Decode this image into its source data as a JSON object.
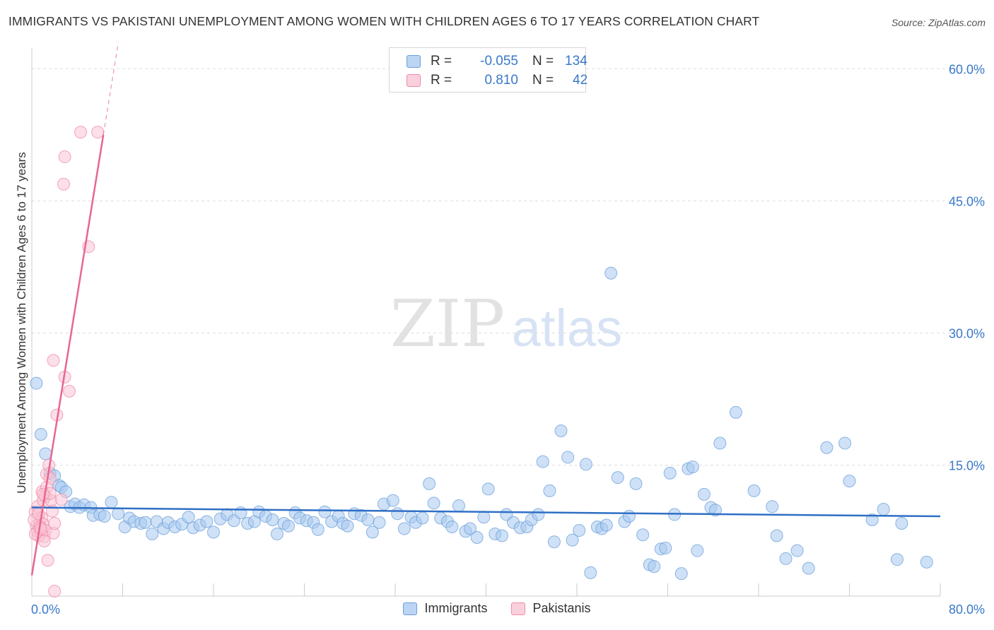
{
  "header": {
    "title": "IMMIGRANTS VS PAKISTANI UNEMPLOYMENT AMONG WOMEN WITH CHILDREN AGES 6 TO 17 YEARS CORRELATION CHART",
    "source": "Source: ZipAtlas.com"
  },
  "watermark": {
    "zip": "ZIP",
    "atlas": "atlas"
  },
  "legend_top": {
    "rows": [
      {
        "r_label": "R =",
        "r_value": "-0.055",
        "n_label": "N =",
        "n_value": "134",
        "color": "#8fb8e8"
      },
      {
        "r_label": "R =",
        "r_value": "0.810",
        "n_label": "N =",
        "n_value": "42",
        "color": "#f4a6c0"
      }
    ]
  },
  "legend_bottom": {
    "items": [
      {
        "label": "Immigrants",
        "color": "#8fb8e8"
      },
      {
        "label": "Pakistanis",
        "color": "#f4a6c0"
      }
    ]
  },
  "colors": {
    "immigrants_fill": "#a8c8ee",
    "immigrants_stroke": "#6a9fdc",
    "immigrants_line": "#2f6fc6",
    "pakistanis_fill": "#f9c5d5",
    "pakistanis_stroke": "#ee89a8",
    "pakistanis_line": "#e9668f",
    "tick_label": "#3a78c9",
    "grid": "#dddddd"
  },
  "chart_data": {
    "type": "scatter",
    "title": "IMMIGRANTS VS PAKISTANI UNEMPLOYMENT AMONG WOMEN WITH CHILDREN AGES 6 TO 17 YEARS CORRELATION CHART",
    "xlabel": "",
    "ylabel": "Unemployment Among Women with Children Ages 6 to 17 years",
    "xlim": [
      0,
      80
    ],
    "ylim": [
      0,
      63
    ],
    "x_tick_labels": [
      {
        "value": 0,
        "label": "0.0%"
      },
      {
        "value": 80,
        "label": "80.0%"
      }
    ],
    "y_tick_labels": [
      {
        "value": 15,
        "label": "15.0%"
      },
      {
        "value": 30,
        "label": "30.0%"
      },
      {
        "value": 45,
        "label": "45.0%"
      },
      {
        "value": 60,
        "label": "60.0%"
      }
    ],
    "grid": true,
    "legend_position": "bottom",
    "series": [
      {
        "name": "Immigrants",
        "trend": {
          "x": [
            0,
            80
          ],
          "y": [
            10.2,
            9.2
          ]
        },
        "points": [
          [
            0.4,
            24.3
          ],
          [
            0.8,
            18.5
          ],
          [
            1.2,
            16.3
          ],
          [
            1.6,
            14.1
          ],
          [
            2.0,
            13.8
          ],
          [
            2.4,
            12.7
          ],
          [
            2.6,
            12.5
          ],
          [
            3.0,
            12.0
          ],
          [
            3.4,
            10.3
          ],
          [
            3.8,
            10.6
          ],
          [
            4.2,
            10.2
          ],
          [
            4.6,
            10.5
          ],
          [
            5.2,
            10.2
          ],
          [
            5.4,
            9.3
          ],
          [
            6.0,
            9.4
          ],
          [
            6.4,
            9.2
          ],
          [
            7.0,
            10.8
          ],
          [
            7.6,
            9.5
          ],
          [
            8.2,
            8.0
          ],
          [
            8.6,
            9.0
          ],
          [
            9.0,
            8.6
          ],
          [
            9.6,
            8.4
          ],
          [
            10.0,
            8.5
          ],
          [
            10.6,
            7.2
          ],
          [
            11.0,
            8.6
          ],
          [
            11.6,
            7.8
          ],
          [
            12.0,
            8.5
          ],
          [
            12.6,
            8.0
          ],
          [
            13.2,
            8.3
          ],
          [
            13.8,
            9.1
          ],
          [
            14.2,
            7.9
          ],
          [
            14.8,
            8.2
          ],
          [
            15.4,
            8.6
          ],
          [
            16.0,
            7.4
          ],
          [
            16.6,
            8.9
          ],
          [
            17.2,
            9.4
          ],
          [
            17.8,
            8.7
          ],
          [
            18.4,
            9.6
          ],
          [
            19.0,
            8.4
          ],
          [
            19.6,
            8.6
          ],
          [
            20.0,
            9.7
          ],
          [
            20.6,
            9.2
          ],
          [
            21.2,
            8.8
          ],
          [
            21.6,
            7.2
          ],
          [
            22.2,
            8.4
          ],
          [
            22.6,
            8.1
          ],
          [
            23.2,
            9.6
          ],
          [
            23.6,
            9.0
          ],
          [
            24.2,
            8.7
          ],
          [
            24.8,
            8.5
          ],
          [
            25.2,
            7.7
          ],
          [
            25.8,
            9.7
          ],
          [
            26.4,
            8.6
          ],
          [
            27.0,
            9.2
          ],
          [
            27.4,
            8.4
          ],
          [
            27.8,
            8.1
          ],
          [
            28.4,
            9.5
          ],
          [
            29.0,
            9.3
          ],
          [
            29.6,
            8.8
          ],
          [
            30.0,
            7.4
          ],
          [
            30.6,
            8.5
          ],
          [
            31.0,
            10.6
          ],
          [
            31.8,
            11.0
          ],
          [
            32.2,
            9.5
          ],
          [
            32.8,
            7.8
          ],
          [
            33.4,
            9.1
          ],
          [
            33.8,
            8.5
          ],
          [
            34.4,
            9.0
          ],
          [
            35.0,
            12.9
          ],
          [
            35.4,
            10.7
          ],
          [
            36.0,
            9.0
          ],
          [
            36.6,
            8.6
          ],
          [
            37.0,
            8.0
          ],
          [
            37.6,
            10.4
          ],
          [
            38.2,
            7.5
          ],
          [
            38.6,
            7.8
          ],
          [
            39.2,
            6.8
          ],
          [
            39.8,
            9.1
          ],
          [
            40.2,
            12.3
          ],
          [
            40.8,
            7.2
          ],
          [
            41.4,
            7.0
          ],
          [
            41.8,
            9.4
          ],
          [
            42.4,
            8.5
          ],
          [
            43.0,
            7.9
          ],
          [
            43.6,
            8.0
          ],
          [
            44.0,
            8.8
          ],
          [
            44.6,
            9.4
          ],
          [
            45.0,
            15.4
          ],
          [
            45.6,
            12.1
          ],
          [
            46.0,
            6.3
          ],
          [
            46.6,
            18.9
          ],
          [
            47.2,
            15.9
          ],
          [
            47.6,
            6.5
          ],
          [
            48.2,
            7.6
          ],
          [
            48.8,
            15.1
          ],
          [
            49.2,
            2.8
          ],
          [
            49.8,
            8.0
          ],
          [
            50.2,
            7.8
          ],
          [
            50.6,
            8.2
          ],
          [
            51.0,
            36.8
          ],
          [
            51.6,
            13.6
          ],
          [
            52.2,
            8.6
          ],
          [
            52.6,
            9.2
          ],
          [
            53.2,
            12.9
          ],
          [
            53.8,
            7.1
          ],
          [
            54.4,
            3.7
          ],
          [
            54.8,
            3.5
          ],
          [
            55.4,
            5.5
          ],
          [
            55.8,
            5.6
          ],
          [
            56.2,
            14.1
          ],
          [
            56.6,
            9.4
          ],
          [
            57.2,
            2.7
          ],
          [
            57.8,
            14.6
          ],
          [
            58.2,
            14.8
          ],
          [
            58.6,
            5.3
          ],
          [
            59.2,
            11.7
          ],
          [
            59.8,
            10.2
          ],
          [
            60.2,
            9.9
          ],
          [
            60.6,
            17.5
          ],
          [
            62.0,
            21.0
          ],
          [
            63.6,
            12.1
          ],
          [
            65.2,
            10.3
          ],
          [
            65.6,
            7.0
          ],
          [
            66.4,
            4.4
          ],
          [
            67.4,
            5.3
          ],
          [
            68.4,
            3.3
          ],
          [
            70.0,
            17.0
          ],
          [
            71.6,
            17.5
          ],
          [
            72.0,
            13.2
          ],
          [
            74.0,
            8.8
          ],
          [
            75.0,
            10.0
          ],
          [
            76.2,
            4.3
          ],
          [
            76.6,
            8.4
          ],
          [
            78.8,
            4.0
          ]
        ]
      },
      {
        "name": "Pakistanis",
        "trend": {
          "x": [
            0,
            6.3
          ],
          "y": [
            2.5,
            52.5
          ]
        },
        "points": [
          [
            0.3,
            9.7
          ],
          [
            0.4,
            8.1
          ],
          [
            0.5,
            7.5
          ],
          [
            0.6,
            7.0
          ],
          [
            0.7,
            8.6
          ],
          [
            0.8,
            7.4
          ],
          [
            0.9,
            9.0
          ],
          [
            1.0,
            8.3
          ],
          [
            1.1,
            6.9
          ],
          [
            1.2,
            7.6
          ],
          [
            0.2,
            8.8
          ],
          [
            0.3,
            7.2
          ],
          [
            0.5,
            10.3
          ],
          [
            0.6,
            9.5
          ],
          [
            0.7,
            8.0
          ],
          [
            0.9,
            12.0
          ],
          [
            1.0,
            11.0
          ],
          [
            1.2,
            11.5
          ],
          [
            1.3,
            14.0
          ],
          [
            1.4,
            4.2
          ],
          [
            1.5,
            15.0
          ],
          [
            1.6,
            13.5
          ],
          [
            1.7,
            11.0
          ],
          [
            1.8,
            9.8
          ],
          [
            1.9,
            7.3
          ],
          [
            2.0,
            8.4
          ],
          [
            1.9,
            26.9
          ],
          [
            2.2,
            20.7
          ],
          [
            2.6,
            11.1
          ],
          [
            2.9,
            25.0
          ],
          [
            3.3,
            23.4
          ],
          [
            2.8,
            46.9
          ],
          [
            2.9,
            50.0
          ],
          [
            4.3,
            52.8
          ],
          [
            5.0,
            39.8
          ],
          [
            5.8,
            52.8
          ],
          [
            1.1,
            6.4
          ],
          [
            1.3,
            12.5
          ],
          [
            1.6,
            11.8
          ],
          [
            0.8,
            7.8
          ],
          [
            1.0,
            11.7
          ],
          [
            2.0,
            0.7
          ]
        ]
      }
    ]
  }
}
